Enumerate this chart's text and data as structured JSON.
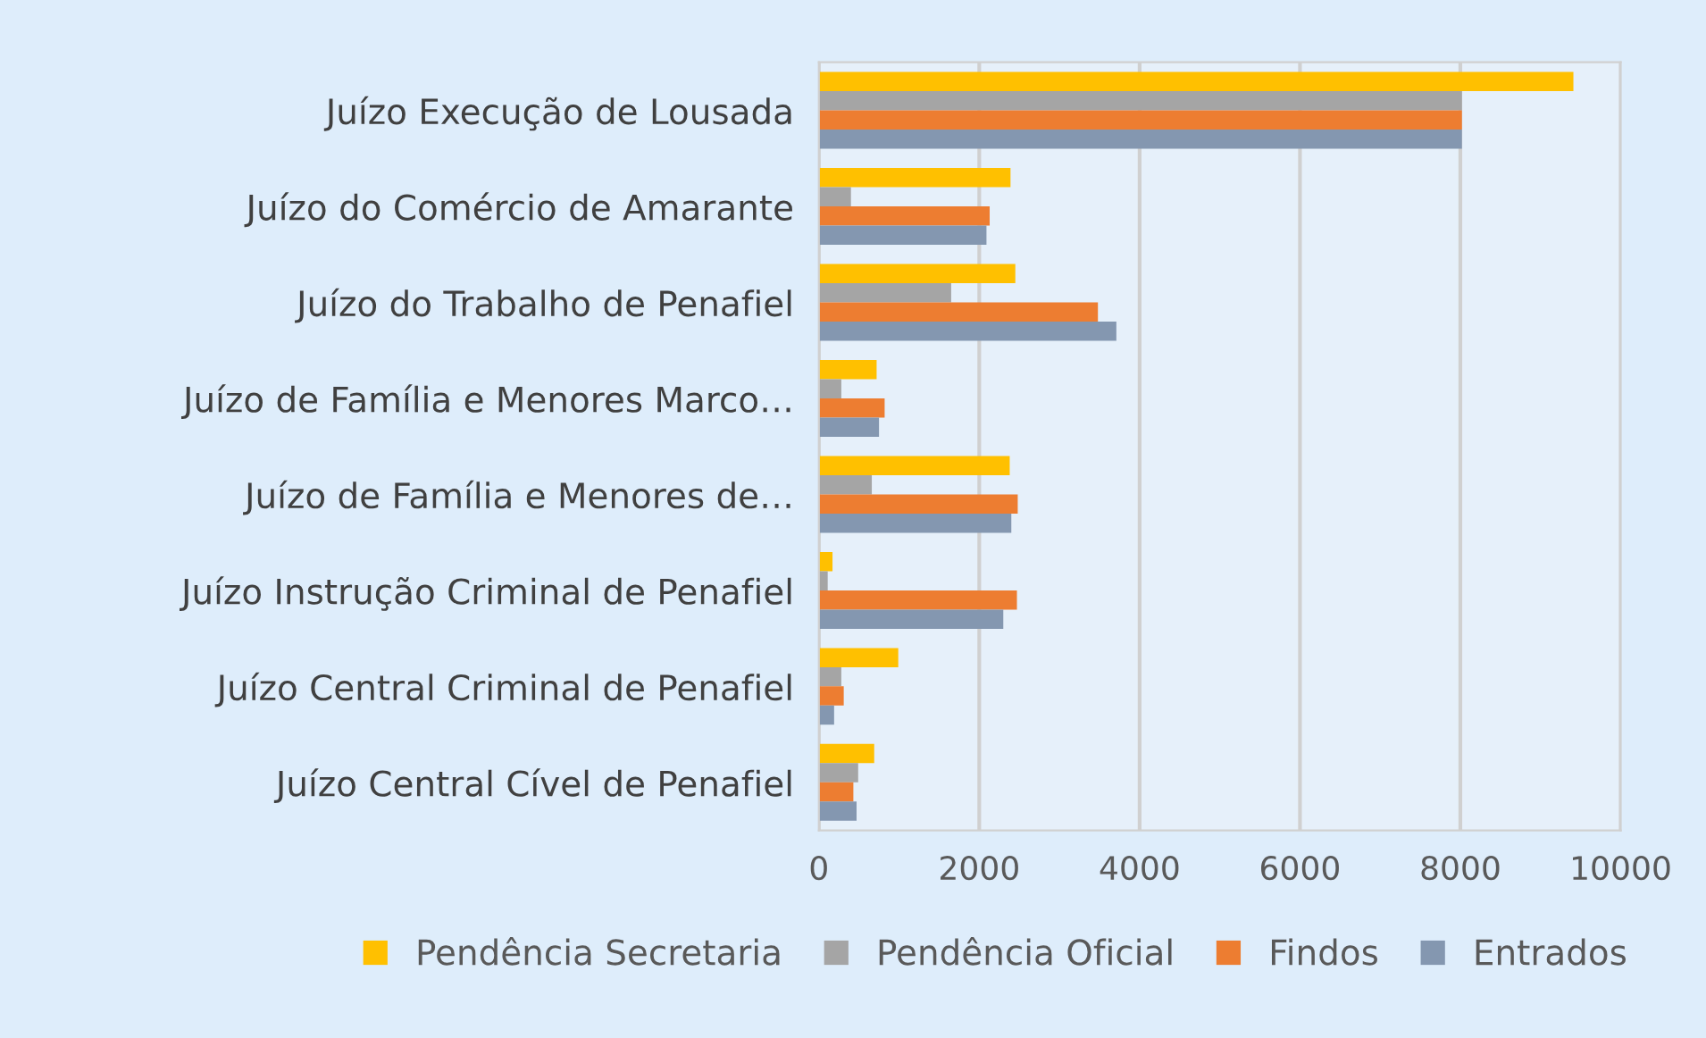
{
  "chart_data": {
    "type": "bar",
    "orientation": "horizontal",
    "categories": [
      "Juízo Execução de Lousada",
      "Juízo do Comércio de Amarante",
      "Juízo do Trabalho de Penafiel",
      "Juízo de Família e Menores Marco…",
      "Juízo de Família e Menores de…",
      "Juízo Instrução Criminal de Penafiel",
      "Juízo Central Criminal de Penafiel",
      "Juízo Central Cível de Penafiel"
    ],
    "series": [
      {
        "name": "Pendência Secretaria",
        "color": "#ffc000",
        "values": [
          9410,
          2390,
          2450,
          720,
          2380,
          170,
          990,
          690
        ]
      },
      {
        "name": "Pendência Oficial",
        "color": "#a5a5a5",
        "values": [
          8020,
          400,
          1650,
          280,
          660,
          110,
          280,
          490
        ]
      },
      {
        "name": "Findos",
        "color": "#ed7d31",
        "values": [
          8020,
          2130,
          3480,
          820,
          2480,
          2470,
          310,
          430
        ]
      },
      {
        "name": "Entrados",
        "color": "#8497b0",
        "values": [
          8020,
          2090,
          3710,
          750,
          2400,
          2300,
          190,
          470
        ]
      }
    ],
    "xlim": [
      0,
      10000
    ],
    "xticks": [
      0,
      2000,
      4000,
      6000,
      8000,
      10000
    ],
    "grid": "x",
    "legend": "bottom"
  }
}
